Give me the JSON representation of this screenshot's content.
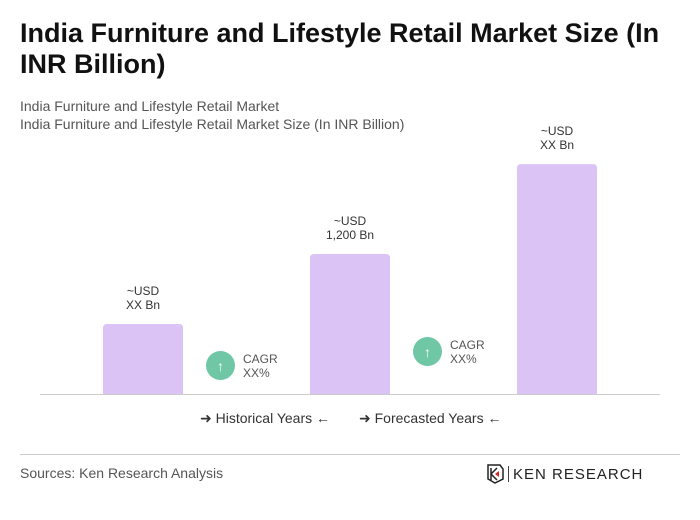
{
  "title": "India Furniture and Lifestyle Retail Market Size (In INR Billion)",
  "subtitle1": "India Furniture and Lifestyle Retail Market",
  "subtitle2": "India Furniture and Lifestyle Retail Market Size (In INR Billion)",
  "chart_data": {
    "type": "bar",
    "categories": [
      "",
      "",
      ""
    ],
    "values": [
      600,
      1200,
      1970
    ],
    "data_labels": [
      [
        "~USD",
        "XX Bn"
      ],
      [
        "~USD",
        "1,200 Bn"
      ],
      [
        "~USD",
        "XX Bn"
      ]
    ],
    "bar_color": "#dcc3f5",
    "cagr": [
      {
        "label": "CAGR",
        "value": "XX%"
      },
      {
        "label": "CAGR",
        "value": "XX%"
      }
    ],
    "cagr_color": "#6fc7a5",
    "legend": [
      "Historical Years",
      "Forecasted Years"
    ],
    "grid": false
  },
  "sources": "Sources: Ken Research Analysis",
  "logo": "KEN RESEARCH"
}
